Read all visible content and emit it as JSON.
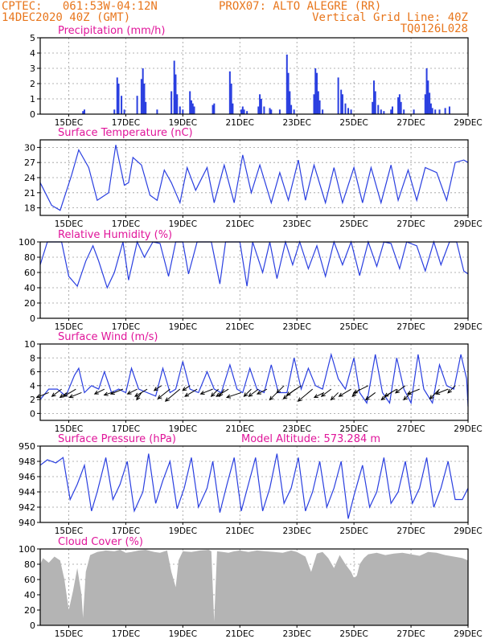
{
  "header": {
    "left_line1": "CPTEC:   061:53W-04:12N",
    "left_line2": "14DEC2020 40Z (GMT)",
    "station": "PROX07: ALTO ALEGRE (RR)",
    "grid_note": "Vertical Grid Line: 40Z",
    "code": "TQ0126L028"
  },
  "colors": {
    "header": "#e8761c",
    "title": "#e0159a",
    "line": "#2a3fe0",
    "cloud": "#b4b4b4",
    "wind_arrow": "#000000"
  },
  "x_axis": {
    "start_day": 14,
    "end_day": 29,
    "tick_labels": [
      "15DEC",
      "17DEC",
      "19DEC",
      "21DEC",
      "23DEC",
      "25DEC",
      "27DEC",
      "29DEC"
    ],
    "tick_days": [
      15,
      17,
      19,
      21,
      23,
      25,
      27,
      29
    ]
  },
  "chart_data": [
    {
      "id": "precip",
      "type": "bar",
      "title": "Precipitation (mm/h)",
      "extra_label": "",
      "ylim": [
        0,
        5
      ],
      "yticks": [
        "0",
        "1",
        "2",
        "3",
        "4",
        "5"
      ],
      "grid": true,
      "x": [
        15.5,
        15.55,
        16.6,
        16.7,
        16.75,
        16.85,
        16.95,
        17.4,
        17.55,
        17.6,
        17.65,
        17.7,
        18.1,
        18.6,
        18.7,
        18.75,
        18.8,
        18.9,
        19.0,
        19.25,
        19.3,
        19.35,
        19.4,
        20.05,
        20.1,
        20.65,
        20.7,
        20.75,
        21.05,
        21.1,
        21.15,
        21.25,
        21.65,
        21.7,
        21.75,
        21.85,
        22.05,
        22.1,
        22.4,
        22.65,
        22.7,
        22.75,
        22.8,
        22.9,
        23.6,
        23.65,
        23.7,
        23.75,
        23.8,
        23.9,
        24.45,
        24.55,
        24.6,
        24.7,
        24.8,
        24.9,
        25.65,
        25.7,
        25.75,
        25.85,
        25.95,
        26.05,
        26.3,
        26.35,
        26.55,
        26.6,
        26.65,
        26.75,
        27.1,
        27.5,
        27.55,
        27.6,
        27.65,
        27.7,
        27.75,
        27.85,
        28.0,
        28.2,
        28.35
      ],
      "values": [
        0.2,
        0.3,
        0.3,
        2.4,
        2.0,
        1.2,
        0.3,
        1.2,
        2.3,
        3.0,
        2.0,
        0.8,
        0.3,
        1.5,
        3.5,
        2.6,
        1.3,
        0.5,
        0.3,
        1.5,
        0.9,
        0.7,
        0.5,
        0.6,
        0.7,
        2.8,
        2.0,
        0.7,
        0.3,
        0.5,
        0.3,
        0.2,
        0.5,
        1.3,
        1.0,
        0.5,
        0.4,
        0.3,
        0.3,
        3.9,
        2.7,
        1.5,
        0.6,
        0.3,
        1.3,
        3.0,
        2.7,
        1.5,
        0.9,
        0.3,
        2.4,
        1.6,
        1.3,
        0.7,
        0.4,
        0.3,
        0.8,
        2.2,
        1.5,
        0.6,
        0.3,
        0.2,
        0.3,
        0.5,
        1.1,
        1.3,
        0.8,
        0.3,
        0.3,
        1.3,
        3.0,
        2.2,
        1.4,
        0.7,
        0.4,
        0.3,
        0.3,
        0.4,
        0.5
      ]
    },
    {
      "id": "temp",
      "type": "line",
      "title": "Surface Temperature (nC)",
      "extra_label": "",
      "ylim": [
        16.5,
        31.5
      ],
      "yticks": [
        "18",
        "21",
        "24",
        "27",
        "30"
      ],
      "ytick_values": [
        18,
        21,
        24,
        27,
        30
      ],
      "grid": true,
      "x": [
        14.0,
        14.4,
        14.7,
        15.1,
        15.35,
        15.7,
        16.0,
        16.4,
        16.65,
        16.95,
        17.1,
        17.25,
        17.55,
        17.85,
        18.1,
        18.35,
        18.6,
        18.9,
        19.15,
        19.45,
        19.85,
        20.1,
        20.45,
        20.8,
        21.1,
        21.4,
        21.7,
        22.1,
        22.4,
        22.7,
        23.05,
        23.3,
        23.6,
        24.0,
        24.3,
        24.6,
        25.0,
        25.3,
        25.6,
        25.95,
        26.3,
        26.55,
        26.9,
        27.2,
        27.5,
        27.9,
        28.25,
        28.55,
        28.85,
        29.0
      ],
      "values": [
        23.0,
        18.5,
        17.5,
        24.5,
        29.5,
        26.0,
        19.5,
        21.0,
        30.5,
        22.5,
        23.0,
        28.0,
        26.5,
        20.5,
        19.5,
        25.5,
        23.0,
        19.0,
        26.0,
        21.5,
        26.0,
        19.0,
        26.5,
        19.0,
        28.5,
        21.0,
        26.5,
        19.0,
        25.0,
        19.5,
        27.5,
        19.5,
        26.5,
        19.0,
        26.0,
        19.0,
        26.0,
        19.0,
        26.0,
        19.0,
        26.5,
        19.5,
        25.5,
        19.5,
        26.0,
        25.0,
        19.5,
        27.0,
        27.5,
        27.0
      ]
    },
    {
      "id": "rh",
      "type": "line",
      "title": "Relative Humidity (%)",
      "extra_label": "",
      "ylim": [
        0,
        100
      ],
      "yticks": [
        "0",
        "20",
        "40",
        "60",
        "80",
        "100"
      ],
      "grid": true,
      "x": [
        14.0,
        14.25,
        14.45,
        14.75,
        15.0,
        15.3,
        15.6,
        15.85,
        16.05,
        16.35,
        16.6,
        16.9,
        17.1,
        17.4,
        17.65,
        17.95,
        18.2,
        18.5,
        18.75,
        19.0,
        19.2,
        19.5,
        19.8,
        20.0,
        20.3,
        20.5,
        20.8,
        21.0,
        21.25,
        21.45,
        21.8,
        22.05,
        22.3,
        22.6,
        22.85,
        23.1,
        23.4,
        23.7,
        24.0,
        24.3,
        24.6,
        24.9,
        25.2,
        25.5,
        25.8,
        26.05,
        26.3,
        26.6,
        26.85,
        27.2,
        27.5,
        27.8,
        28.05,
        28.35,
        28.6,
        28.85,
        29.0
      ],
      "values": [
        70,
        100,
        100,
        100,
        55,
        42,
        75,
        95,
        75,
        40,
        60,
        100,
        50,
        100,
        80,
        100,
        98,
        55,
        100,
        100,
        58,
        100,
        100,
        100,
        45,
        100,
        100,
        100,
        42,
        100,
        60,
        100,
        52,
        100,
        70,
        100,
        65,
        95,
        55,
        100,
        70,
        100,
        56,
        100,
        68,
        100,
        98,
        65,
        100,
        95,
        62,
        100,
        70,
        100,
        100,
        62,
        58
      ]
    },
    {
      "id": "wind",
      "type": "line",
      "title": "Surface Wind (m/s)",
      "extra_label": "",
      "ylim": [
        -1,
        10
      ],
      "yticks": [
        "0",
        "2",
        "4",
        "6",
        "8",
        "10"
      ],
      "ytick_values": [
        0,
        2,
        4,
        6,
        8,
        10
      ],
      "grid": true,
      "x": [
        14.0,
        14.3,
        14.6,
        14.9,
        15.2,
        15.35,
        15.55,
        15.8,
        16.05,
        16.25,
        16.5,
        16.75,
        17.0,
        17.2,
        17.45,
        17.75,
        18.05,
        18.3,
        18.55,
        18.75,
        19.0,
        19.25,
        19.55,
        19.85,
        20.1,
        20.35,
        20.65,
        20.9,
        21.1,
        21.35,
        21.6,
        21.85,
        22.1,
        22.35,
        22.65,
        22.9,
        23.15,
        23.4,
        23.65,
        23.9,
        24.2,
        24.45,
        24.7,
        25.0,
        25.2,
        25.45,
        25.75,
        26.0,
        26.25,
        26.5,
        26.75,
        27.0,
        27.25,
        27.45,
        27.75,
        28.0,
        28.25,
        28.5,
        28.75,
        28.95,
        29.0
      ],
      "values": [
        2.0,
        3.5,
        3.5,
        2.5,
        5.5,
        6.5,
        3.0,
        4.0,
        3.5,
        6.0,
        3.0,
        3.5,
        3.0,
        6.5,
        3.5,
        3.0,
        2.5,
        6.5,
        3.0,
        3.5,
        7.5,
        3.5,
        3.0,
        6.0,
        3.5,
        3.0,
        7.0,
        3.5,
        3.0,
        6.5,
        3.5,
        3.0,
        7.0,
        3.0,
        3.0,
        8.0,
        3.5,
        6.5,
        4.0,
        3.5,
        8.5,
        5.0,
        3.5,
        8.0,
        3.0,
        1.5,
        8.5,
        3.0,
        1.5,
        8.0,
        3.5,
        1.5,
        8.5,
        3.5,
        1.5,
        7.0,
        4.0,
        3.5,
        8.5,
        5.0,
        1.0
      ],
      "arrow_x": [
        14.3,
        14.75,
        14.95,
        15.25,
        15.45,
        16.25,
        16.5,
        16.9,
        17.4,
        17.55,
        17.75,
        18.25,
        18.55,
        18.9,
        19.25,
        19.5,
        20.05,
        20.25,
        20.45,
        20.6,
        21.05,
        21.4,
        21.65,
        21.95,
        22.3,
        22.55,
        22.95,
        23.15,
        23.55,
        23.95,
        24.2,
        24.45,
        24.9,
        25.2,
        25.5,
        25.75,
        26.3,
        26.5,
        26.8,
        27.0,
        27.3,
        28.0,
        28.3,
        28.55
      ],
      "arrow_y": [
        3.0,
        3.5,
        3.0,
        3.5,
        3.0,
        3.5,
        3.0,
        3.5,
        3.5,
        3.0,
        3.5,
        4.0,
        3.5,
        3.5,
        4.0,
        3.5,
        3.5,
        3.5,
        3.5,
        3.5,
        3.0,
        3.5,
        3.5,
        3.5,
        3.0,
        4.0,
        3.5,
        4.0,
        3.5,
        3.0,
        3.5,
        3.0,
        3.5,
        3.5,
        4.0,
        3.0,
        3.0,
        3.5,
        4.0,
        3.0,
        3.5,
        3.5,
        3.5,
        4.0
      ],
      "arrow_u": [
        -5,
        -4,
        -3,
        -5,
        -5,
        -4,
        -3,
        -5,
        -4,
        -2,
        -5,
        -3,
        -5,
        -6,
        -3,
        -5,
        -5,
        -3,
        -2,
        -5,
        -6,
        -3,
        -4,
        -4,
        -3,
        -3,
        -5,
        -6,
        -6,
        -4,
        -4,
        -3,
        -5,
        -3,
        -6,
        -4,
        -4,
        -5,
        -4,
        -3,
        -5,
        -4,
        -5,
        -3
      ],
      "arrow_v": [
        -2,
        -3,
        -2,
        -3,
        -2,
        -2,
        -1,
        -2,
        -2,
        -3,
        -3,
        -2,
        -4,
        -5,
        -2,
        -3,
        -2,
        -3,
        -3,
        -3,
        -2,
        -3,
        -3,
        -2,
        -3,
        -3,
        -4,
        -4,
        -5,
        -2,
        -3,
        -3,
        -3,
        -3,
        -3,
        -3,
        -3,
        -3,
        -3,
        -3,
        -2,
        -4,
        -2,
        -3
      ]
    },
    {
      "id": "pressure",
      "type": "line",
      "title": "Surface Pressure (hPa)",
      "extra_label": "Model Altitude: 573.284 m",
      "ylim": [
        940,
        950
      ],
      "yticks": [
        "940",
        "942",
        "944",
        "946",
        "948",
        "950"
      ],
      "grid": true,
      "x": [
        14.0,
        14.25,
        14.55,
        14.8,
        15.05,
        15.3,
        15.55,
        15.8,
        16.0,
        16.3,
        16.55,
        16.8,
        17.05,
        17.3,
        17.6,
        17.8,
        18.05,
        18.3,
        18.55,
        18.8,
        19.05,
        19.3,
        19.55,
        19.85,
        20.05,
        20.3,
        20.55,
        20.8,
        21.05,
        21.3,
        21.55,
        21.8,
        22.05,
        22.3,
        22.55,
        22.8,
        23.05,
        23.3,
        23.55,
        23.8,
        24.05,
        24.3,
        24.55,
        24.8,
        25.0,
        25.3,
        25.55,
        25.8,
        26.05,
        26.3,
        26.55,
        26.8,
        27.05,
        27.3,
        27.55,
        27.8,
        28.05,
        28.3,
        28.55,
        28.8,
        29.0
      ],
      "values": [
        947.5,
        948.2,
        947.8,
        948.5,
        943.0,
        945.0,
        947.5,
        941.5,
        944.0,
        948.5,
        943.0,
        945.0,
        948.0,
        941.5,
        944.0,
        949.0,
        942.5,
        945.5,
        948.0,
        941.8,
        944.5,
        948.5,
        942.0,
        944.5,
        948.0,
        941.3,
        945.0,
        948.5,
        941.5,
        945.0,
        948.5,
        941.5,
        944.5,
        949.0,
        942.5,
        944.5,
        948.5,
        941.5,
        944.0,
        948.0,
        942.0,
        944.5,
        948.0,
        940.5,
        943.5,
        947.5,
        942.0,
        944.0,
        948.5,
        942.5,
        944.0,
        948.0,
        942.5,
        944.5,
        948.5,
        942.0,
        944.5,
        948.0,
        943.0,
        943.0,
        944.5
      ]
    },
    {
      "id": "cloud",
      "type": "area",
      "title": "Cloud Cover (%)",
      "extra_label": "",
      "ylim": [
        0,
        100
      ],
      "yticks": [
        "0",
        "20",
        "40",
        "60",
        "80",
        "100"
      ],
      "grid": true,
      "x": [
        14.0,
        14.1,
        14.3,
        14.5,
        14.7,
        14.85,
        15.0,
        15.15,
        15.3,
        15.45,
        15.5,
        15.6,
        15.75,
        16.0,
        16.3,
        16.6,
        16.8,
        17.0,
        17.2,
        17.45,
        17.7,
        18.0,
        18.2,
        18.45,
        18.6,
        18.75,
        18.85,
        19.0,
        19.3,
        19.6,
        19.9,
        20.0,
        20.1,
        20.2,
        20.4,
        20.6,
        20.8,
        21.0,
        21.3,
        21.6,
        21.9,
        22.2,
        22.5,
        22.8,
        23.0,
        23.3,
        23.5,
        23.7,
        23.9,
        24.1,
        24.3,
        24.5,
        24.7,
        24.9,
        25.0,
        25.1,
        25.2,
        25.35,
        25.5,
        25.8,
        26.1,
        26.4,
        26.7,
        27.0,
        27.3,
        27.6,
        27.9,
        28.2,
        28.5,
        28.8,
        29.0
      ],
      "values": [
        80,
        88,
        82,
        90,
        85,
        60,
        20,
        45,
        75,
        40,
        10,
        70,
        92,
        96,
        98,
        97,
        99,
        95,
        96,
        98,
        99,
        96,
        95,
        98,
        70,
        50,
        85,
        97,
        96,
        98,
        99,
        97,
        5,
        97,
        96,
        95,
        97,
        98,
        96,
        98,
        97,
        96,
        95,
        98,
        96,
        90,
        70,
        94,
        96,
        88,
        75,
        92,
        80,
        70,
        62,
        65,
        80,
        88,
        93,
        95,
        92,
        94,
        95,
        93,
        91,
        96,
        95,
        92,
        90,
        88,
        85
      ]
    }
  ]
}
